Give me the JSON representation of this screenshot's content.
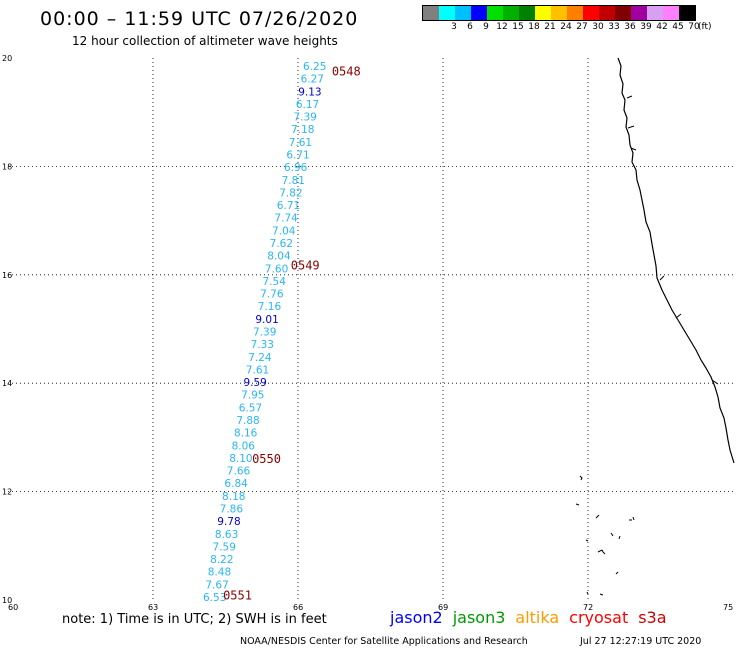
{
  "header": {
    "title": "00:00 – 11:59 UTC 07/26/2020",
    "subtitle": "12 hour collection of altimeter wave heights"
  },
  "legend": {
    "unit": "(ft)",
    "swatches": [
      {
        "color": "#808080",
        "label": ""
      },
      {
        "color": "#00ffff",
        "label": "3"
      },
      {
        "color": "#00bfff",
        "label": "6"
      },
      {
        "color": "#0000ff",
        "label": "9"
      },
      {
        "color": "#00e000",
        "label": "12"
      },
      {
        "color": "#00b000",
        "label": "15"
      },
      {
        "color": "#008000",
        "label": "18"
      },
      {
        "color": "#ffff00",
        "label": "21"
      },
      {
        "color": "#ffc000",
        "label": "24"
      },
      {
        "color": "#ff8000",
        "label": "27"
      },
      {
        "color": "#ff0000",
        "label": "30"
      },
      {
        "color": "#c00000",
        "label": "33"
      },
      {
        "color": "#800000",
        "label": "36"
      },
      {
        "color": "#a000a0",
        "label": "39"
      },
      {
        "color": "#d8a0f0",
        "label": "42"
      },
      {
        "color": "#ff80ff",
        "label": "45"
      },
      {
        "color": "#000000",
        "label": "70"
      }
    ]
  },
  "map": {
    "lon_range": [
      60,
      75
    ],
    "lat_range": [
      10,
      20
    ],
    "lon_ticks": [
      "60",
      "63",
      "66",
      "69",
      "72",
      "75"
    ],
    "lat_ticks": [
      "10",
      "12",
      "14",
      "16",
      "18",
      "20"
    ],
    "grid": "dotted",
    "track": {
      "satellite": "jason3",
      "observations": [
        {
          "value": "6.25",
          "color": "#29b6f6"
        },
        {
          "value": "6.27",
          "color": "#29b6f6"
        },
        {
          "value": "9.13",
          "color": "#0000cd"
        },
        {
          "value": "6.17",
          "color": "#29b6f6"
        },
        {
          "value": "7.39",
          "color": "#29b6f6"
        },
        {
          "value": "7.18",
          "color": "#29b6f6"
        },
        {
          "value": "7.61",
          "color": "#29b6f6"
        },
        {
          "value": "6.71",
          "color": "#29b6f6"
        },
        {
          "value": "6.96",
          "color": "#29b6f6"
        },
        {
          "value": "7.81",
          "color": "#29b6f6"
        },
        {
          "value": "7.82",
          "color": "#29b6f6"
        },
        {
          "value": "6.71",
          "color": "#29b6f6"
        },
        {
          "value": "7.74",
          "color": "#29b6f6"
        },
        {
          "value": "7.04",
          "color": "#29b6f6"
        },
        {
          "value": "7.62",
          "color": "#29b6f6"
        },
        {
          "value": "8.04",
          "color": "#29b6f6"
        },
        {
          "value": "7.60",
          "color": "#29b6f6"
        },
        {
          "value": "7.54",
          "color": "#29b6f6"
        },
        {
          "value": "7.76",
          "color": "#29b6f6"
        },
        {
          "value": "7.16",
          "color": "#29b6f6"
        },
        {
          "value": "9.01",
          "color": "#0000cd"
        },
        {
          "value": "7.39",
          "color": "#29b6f6"
        },
        {
          "value": "7.33",
          "color": "#29b6f6"
        },
        {
          "value": "7.24",
          "color": "#29b6f6"
        },
        {
          "value": "7.61",
          "color": "#29b6f6"
        },
        {
          "value": "9.59",
          "color": "#0000cd"
        },
        {
          "value": "7.95",
          "color": "#29b6f6"
        },
        {
          "value": "6.57",
          "color": "#29b6f6"
        },
        {
          "value": "7.88",
          "color": "#29b6f6"
        },
        {
          "value": "8.16",
          "color": "#29b6f6"
        },
        {
          "value": "8.06",
          "color": "#29b6f6"
        },
        {
          "value": "8.10",
          "color": "#29b6f6"
        },
        {
          "value": "7.66",
          "color": "#29b6f6"
        },
        {
          "value": "6.84",
          "color": "#29b6f6"
        },
        {
          "value": "8.18",
          "color": "#29b6f6"
        },
        {
          "value": "7.86",
          "color": "#29b6f6"
        },
        {
          "value": "9.78",
          "color": "#0000cd"
        },
        {
          "value": "8.63",
          "color": "#29b6f6"
        },
        {
          "value": "7.59",
          "color": "#29b6f6"
        },
        {
          "value": "8.22",
          "color": "#29b6f6"
        },
        {
          "value": "8.48",
          "color": "#29b6f6"
        },
        {
          "value": "7.67",
          "color": "#29b6f6"
        },
        {
          "value": "6.53",
          "color": "#29b6f6"
        }
      ],
      "time_labels": [
        {
          "text": "0548",
          "lat": 19.75,
          "lon": 66.7
        },
        {
          "text": "0549",
          "lat": 16.17,
          "lon": 65.85
        },
        {
          "text": "0550",
          "lat": 12.6,
          "lon": 65.05
        },
        {
          "text": "0551",
          "lat": 10.08,
          "lon": 64.45
        }
      ]
    }
  },
  "footer": {
    "note": "note: 1) Time is in UTC; 2) SWH is in feet",
    "satellites": [
      {
        "name": "jason2",
        "color": "#0000ff"
      },
      {
        "name": "jason3",
        "color": "#009900"
      },
      {
        "name": "altika",
        "color": "#ff9900"
      },
      {
        "name": "cryosat",
        "color": "#ff0000"
      },
      {
        "name": "s3a",
        "color": "#cc0000"
      }
    ],
    "credit": "NOAA/NESDIS Center for Satellite Applications and Research",
    "timestamp": "Jul 27 12:27:19 UTC 2020"
  }
}
